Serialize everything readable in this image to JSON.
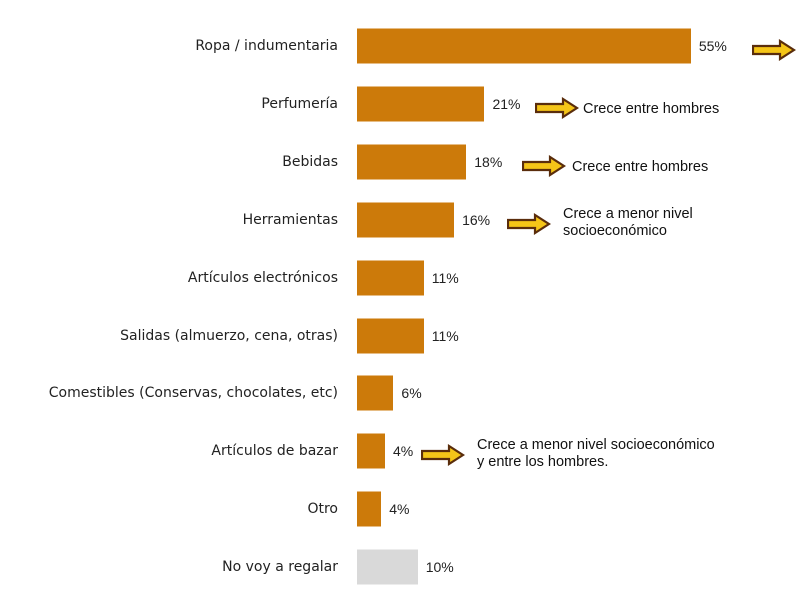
{
  "chart_data": {
    "type": "bar",
    "orientation": "horizontal",
    "categories": [
      "Ropa / indumentaria",
      "Perfumería",
      "Bebidas",
      "Herramientas",
      "Artículos electrónicos",
      "Salidas (almuerzo, cena, otras)",
      "Comestibles (Conservas, chocolates, etc)",
      "Artículos de bazar",
      "Otro",
      "No voy a regalar"
    ],
    "values": [
      55,
      21,
      18,
      16,
      11,
      11,
      6,
      4,
      4,
      10
    ],
    "value_labels": [
      "55%",
      "21%",
      "18%",
      "16%",
      "11%",
      "11%",
      "6%",
      "4%",
      "4%",
      "10%"
    ],
    "annotations": [
      {
        "index": 0,
        "text": ""
      },
      {
        "index": 1,
        "text": "Crece entre hombres"
      },
      {
        "index": 2,
        "text": "Crece entre hombres"
      },
      {
        "index": 3,
        "lines": [
          "Crece a menor nivel",
          "socioeconómico"
        ]
      },
      {
        "index": 7,
        "lines": [
          "Crece a menor nivel socioeconómico",
          "y  entre los hombres."
        ]
      }
    ],
    "colors": {
      "bar": "#CC7A0A",
      "bar_highlight": "#D9D9D9",
      "arrow_fill": "#F5C518",
      "arrow_stroke": "#5A2D0C"
    },
    "xlim": [
      0,
      55
    ],
    "grid": false,
    "legend": "none"
  }
}
